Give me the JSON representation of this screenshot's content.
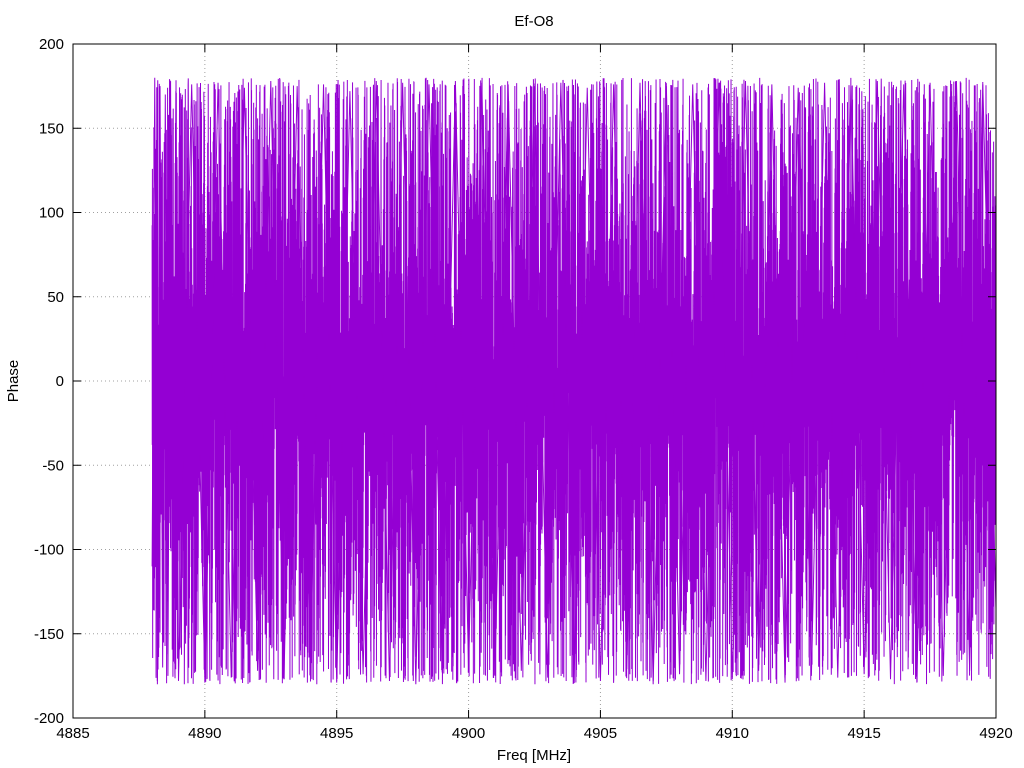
{
  "chart_data": {
    "type": "line",
    "title": "Ef-O8",
    "xlabel": "Freq [MHz]",
    "ylabel": "Phase",
    "xlim": [
      4885,
      4920
    ],
    "ylim": [
      -200,
      200
    ],
    "xticks": [
      4885,
      4890,
      4895,
      4900,
      4905,
      4910,
      4915,
      4920
    ],
    "yticks": [
      -200,
      -150,
      -100,
      -50,
      0,
      50,
      100,
      150,
      200
    ],
    "grid": true,
    "legend": "none",
    "series": [
      {
        "color": "#9400d3",
        "x_start": 4888.0,
        "x_end": 4920.0,
        "y_min": -180,
        "y_max": 180,
        "description_values": "phase wraps rapidly between -180 and 180 across the band",
        "x": [
          4888.0,
          4888.1,
          4888.2,
          4888.3,
          4888.4,
          4888.5,
          4888.6,
          4888.7,
          4888.8,
          4888.9,
          4889.0,
          4889.5,
          4890.0,
          4890.5,
          4891.0,
          4891.5,
          4892.0,
          4892.5,
          4893.0,
          4893.5,
          4894.0,
          4894.5,
          4895.0,
          4895.5,
          4896.0,
          4896.5,
          4897.0,
          4897.5,
          4898.0,
          4898.5,
          4899.0,
          4899.5,
          4900.0,
          4900.5,
          4901.0,
          4901.5,
          4902.0,
          4902.5,
          4903.0,
          4903.5,
          4904.0,
          4904.5,
          4905.0,
          4905.5,
          4906.0,
          4906.5,
          4907.0,
          4907.5,
          4908.0,
          4908.5,
          4909.0,
          4909.5,
          4910.0,
          4910.5,
          4911.0,
          4911.5,
          4912.0,
          4912.5,
          4913.0,
          4913.5,
          4914.0,
          4914.5,
          4915.0,
          4915.5,
          4916.0,
          4916.5,
          4917.0,
          4917.5,
          4918.0,
          4918.5,
          4919.0,
          4919.5,
          4920.0
        ],
        "y": [
          -110,
          180,
          -180,
          175,
          -170,
          170,
          -175,
          178,
          -165,
          172,
          -178,
          176,
          -179,
          177,
          -176,
          174,
          -172,
          178,
          -177,
          175,
          -170,
          176,
          -179,
          172,
          -174,
          178,
          -178,
          177,
          -180,
          176,
          -173,
          178,
          -170,
          177,
          -175,
          176,
          -172,
          175,
          -176,
          177,
          -179,
          174,
          -178,
          176,
          -171,
          177,
          -180,
          175,
          -174,
          176,
          -178,
          177,
          -177,
          178,
          -172,
          176,
          -179,
          174,
          -175,
          177,
          -176,
          175,
          -174,
          178,
          -177,
          176,
          -179,
          177,
          -175,
          178,
          -172,
          176,
          -135
        ]
      }
    ]
  }
}
